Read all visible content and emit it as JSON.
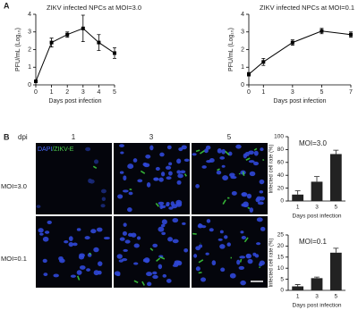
{
  "figure": {
    "panel_a": "A",
    "panel_b": "B",
    "dpi_header": "dpi",
    "dpi_columns": [
      "1",
      "3",
      "5"
    ],
    "stain_dapi": "DAPI",
    "stain_zikv": "/ZIKV-E",
    "rows": [
      "MOI=3.0",
      "MOI=0.1"
    ]
  },
  "chart_data": [
    {
      "type": "line",
      "title": "ZIKV infected NPCs at MOI=3.0",
      "xlabel": "Days post infection",
      "ylabel": "PFU/mL (Log₁₀)",
      "x": [
        0,
        1,
        2,
        3,
        4,
        5
      ],
      "values": [
        0.2,
        2.4,
        2.85,
        3.2,
        2.4,
        1.8
      ],
      "errors": [
        0.05,
        0.25,
        0.15,
        0.75,
        0.45,
        0.3
      ],
      "xlim": [
        0,
        5
      ],
      "xticks": [
        0,
        1,
        2,
        3,
        4,
        5
      ],
      "ylim": [
        0,
        4
      ],
      "yticks": [
        0,
        1,
        2,
        3,
        4
      ],
      "color": "#000000"
    },
    {
      "type": "line",
      "title": "ZIKV infected NPCs at MOI=0.1",
      "xlabel": "Days post infection",
      "ylabel": "PFU/mL (Log₁₀)",
      "x": [
        0,
        1,
        3,
        5,
        7
      ],
      "values": [
        0.6,
        1.3,
        2.4,
        3.05,
        2.85
      ],
      "errors": [
        0.1,
        0.2,
        0.15,
        0.15,
        0.15
      ],
      "xlim": [
        0,
        7
      ],
      "xticks": [
        0,
        1,
        3,
        5,
        7
      ],
      "ylim": [
        0,
        4
      ],
      "yticks": [
        0,
        1,
        2,
        3,
        4
      ],
      "color": "#000000"
    },
    {
      "type": "bar",
      "annotation": "MOI=3.0",
      "xlabel": "Days post infection",
      "ylabel": "Infected cell rate (%)",
      "categories": [
        "1",
        "3",
        "5"
      ],
      "values": [
        10,
        30,
        73
      ],
      "errors": [
        6,
        8,
        6
      ],
      "ylim": [
        0,
        100
      ],
      "yticks": [
        0,
        20,
        40,
        60,
        80,
        100
      ],
      "color": "#222222"
    },
    {
      "type": "bar",
      "annotation": "MOI=0.1",
      "xlabel": "Days post infection",
      "ylabel": "Infected cell rate (%)",
      "categories": [
        "1",
        "3",
        "5"
      ],
      "values": [
        1.8,
        5.5,
        17
      ],
      "errors": [
        0.8,
        0.5,
        2
      ],
      "ylim": [
        0,
        25
      ],
      "yticks": [
        0,
        5,
        10,
        15,
        20,
        25
      ],
      "color": "#222222"
    }
  ]
}
